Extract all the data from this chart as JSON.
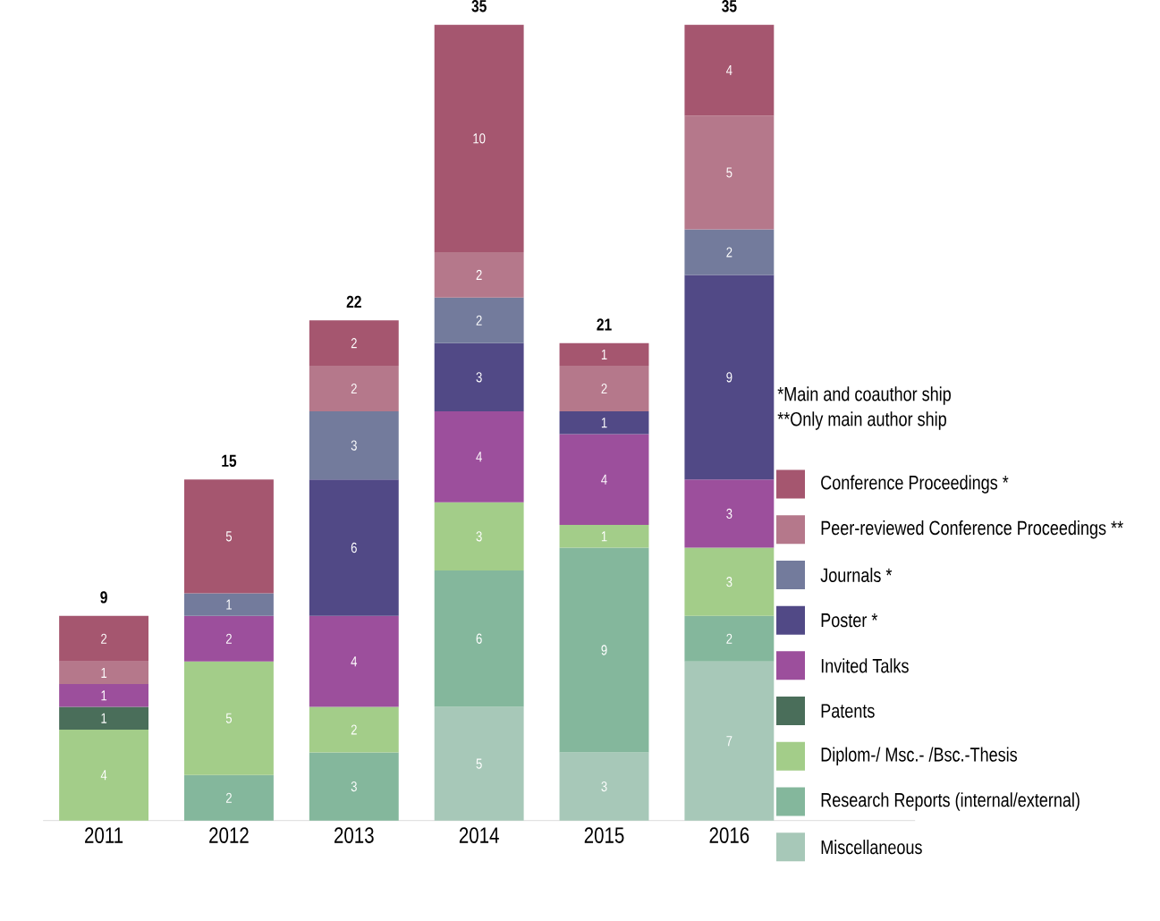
{
  "chart_data": {
    "type": "bar",
    "stacked": true,
    "categories": [
      "2011",
      "2012",
      "2013",
      "2014",
      "2015",
      "2016"
    ],
    "series": [
      {
        "name": "Miscellaneous",
        "color": "#a7c8b8",
        "values": [
          null,
          null,
          null,
          5,
          3,
          7
        ]
      },
      {
        "name": "Research Reports (internal/external)",
        "color": "#84b79c",
        "values": [
          null,
          2,
          3,
          6,
          9,
          2
        ]
      },
      {
        "name": "Diplom-/ Msc.- /Bsc.-Thesis",
        "color": "#a3cd89",
        "values": [
          4,
          5,
          2,
          3,
          1,
          3
        ]
      },
      {
        "name": "Patents",
        "color": "#4a6e5a",
        "values": [
          1,
          null,
          null,
          null,
          null,
          null
        ]
      },
      {
        "name": "Invited Talks",
        "color": "#9c4f9c",
        "values": [
          1,
          2,
          4,
          4,
          4,
          3
        ]
      },
      {
        "name": "Poster *",
        "color": "#514986",
        "values": [
          null,
          null,
          6,
          3,
          1,
          9
        ]
      },
      {
        "name": "Journals *",
        "color": "#737b9c",
        "values": [
          null,
          1,
          3,
          2,
          null,
          2
        ]
      },
      {
        "name": "Peer-reviewed Conference Proceedings **",
        "color": "#b5788b",
        "values": [
          1,
          null,
          2,
          2,
          2,
          5
        ]
      },
      {
        "name": "Conference Proceedings *",
        "color": "#a5566f",
        "values": [
          2,
          5,
          2,
          10,
          1,
          4
        ]
      }
    ],
    "data_labels": true,
    "totals": [
      "9",
      "15",
      "22",
      "35",
      "21",
      "35"
    ],
    "annotations": [
      "*Main and coauthor ship",
      "**Only main author ship"
    ],
    "legend": "right"
  }
}
